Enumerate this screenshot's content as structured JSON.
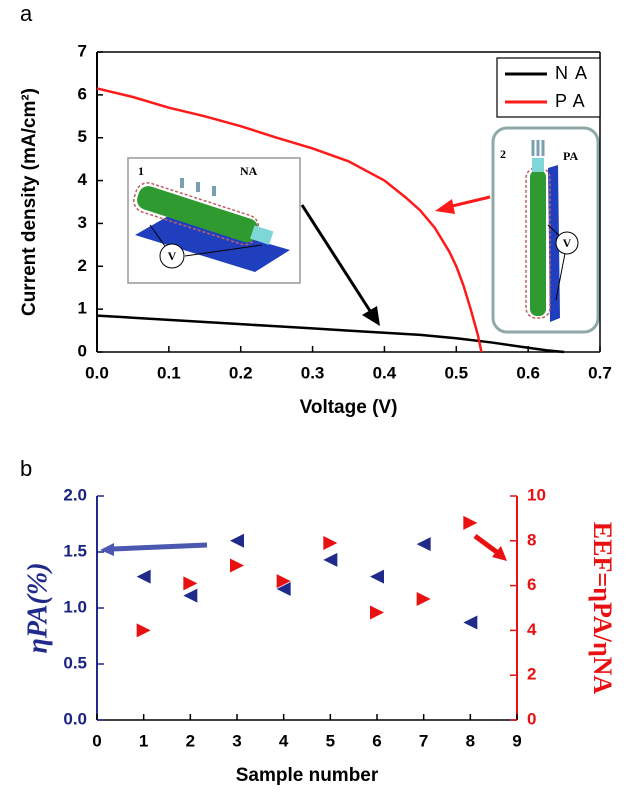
{
  "chart_data": [
    {
      "type": "line",
      "panel_label": "a",
      "xlabel": "Voltage (V)",
      "ylabel": "Current density (mA/cm²)",
      "xlim": [
        0,
        0.7
      ],
      "xticks": [
        {
          "value": 0,
          "label": "0.0"
        },
        {
          "value": 0.1,
          "label": "0.1"
        },
        {
          "value": 0.2,
          "label": "0.2"
        },
        {
          "value": 0.3,
          "label": "0.3"
        },
        {
          "value": 0.4,
          "label": "0.4"
        },
        {
          "value": 0.5,
          "label": "0.5"
        },
        {
          "value": 0.6,
          "label": "0.6"
        },
        {
          "value": 0.7,
          "label": "0.7"
        }
      ],
      "ylim": [
        0,
        7
      ],
      "yticks": [
        0,
        1,
        2,
        3,
        4,
        5,
        6,
        7
      ],
      "grid": false,
      "legend": "upper right",
      "annotations": [
        "1",
        "NA",
        "V",
        "2",
        "PA",
        "V"
      ],
      "series": [
        {
          "name": "NA",
          "color": "#000000",
          "x": [
            0,
            0.05,
            0.1,
            0.15,
            0.2,
            0.25,
            0.3,
            0.35,
            0.4,
            0.45,
            0.5,
            0.55,
            0.6,
            0.625,
            0.65
          ],
          "values": [
            0.85,
            0.8,
            0.75,
            0.7,
            0.65,
            0.6,
            0.55,
            0.5,
            0.45,
            0.4,
            0.32,
            0.22,
            0.1,
            0.04,
            0
          ]
        },
        {
          "name": "PA",
          "color": "#ff1a1a",
          "x": [
            0,
            0.05,
            0.1,
            0.15,
            0.2,
            0.25,
            0.3,
            0.35,
            0.4,
            0.43,
            0.45,
            0.47,
            0.49,
            0.5,
            0.51,
            0.52,
            0.53,
            0.535
          ],
          "values": [
            6.15,
            5.95,
            5.7,
            5.5,
            5.27,
            5.0,
            4.75,
            4.45,
            4.0,
            3.6,
            3.3,
            2.9,
            2.35,
            2.0,
            1.55,
            1.0,
            0.4,
            0
          ]
        }
      ]
    },
    {
      "type": "scatter",
      "panel_label": "b",
      "xlabel": "Sample number",
      "ylabel": "ηPA(%)",
      "y2label": "EEF=ηPA/ηNA",
      "x": [
        1,
        2,
        3,
        4,
        5,
        6,
        7,
        8
      ],
      "xlim": [
        0,
        9
      ],
      "xticks": [
        0,
        1,
        2,
        3,
        4,
        5,
        6,
        7,
        8,
        9
      ],
      "ylim": [
        0,
        2
      ],
      "yticks": [
        {
          "value": 0,
          "label": "0.0"
        },
        {
          "value": 0.5,
          "label": "0.5"
        },
        {
          "value": 1,
          "label": "1.0"
        },
        {
          "value": 1.5,
          "label": "1.5"
        },
        {
          "value": 2,
          "label": "2.0"
        }
      ],
      "y2lim": [
        0,
        10
      ],
      "y2ticks": [
        0,
        2,
        4,
        6,
        8,
        10
      ],
      "grid": false,
      "series": [
        {
          "color": "#1f2a8a",
          "marker": "triangle-left",
          "values": [
            1.28,
            1.11,
            1.6,
            1.17,
            1.43,
            1.28,
            1.57,
            0.87
          ]
        },
        {
          "color": "#e81010",
          "marker": "triangle-right",
          "axis": "y2",
          "values": [
            4.0,
            6.1,
            6.9,
            6.2,
            7.9,
            4.8,
            5.4,
            8.8
          ]
        }
      ]
    }
  ]
}
